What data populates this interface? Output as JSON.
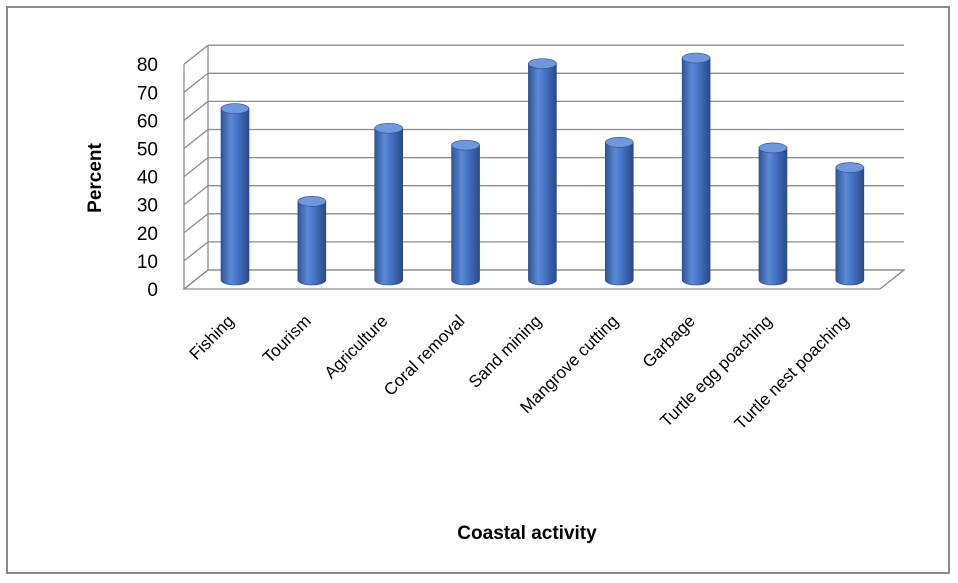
{
  "chart_data": {
    "type": "bar",
    "title": "",
    "xlabel": "Coastal activity",
    "ylabel": "Percent",
    "ylim": [
      0,
      80
    ],
    "yticks": [
      0,
      10,
      20,
      30,
      40,
      50,
      60,
      70,
      80
    ],
    "grid": true,
    "style": "3d-cylinder",
    "legend": "none",
    "bar_color": "#4472C4",
    "categories": [
      "Fishing",
      "Tourism",
      "Agriculture",
      "Coral removal",
      "Sand mining",
      "Mangrove cutting",
      "Garbage",
      "Turtle egg poaching",
      "Turtle nest poaching"
    ],
    "values": [
      61,
      28,
      54,
      48,
      77,
      49,
      79,
      47,
      40
    ]
  }
}
